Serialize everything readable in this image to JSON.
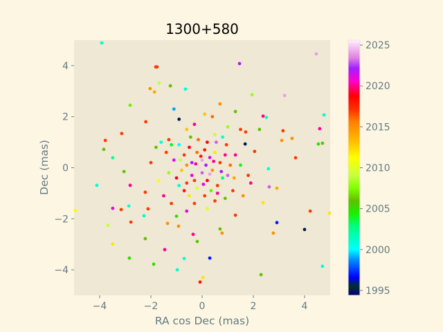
{
  "chart_data": {
    "type": "scatter",
    "title": "1300+580",
    "xlabel": "RA cos Dec (mas)",
    "ylabel": "Dec (mas)",
    "xlim": [
      -5,
      5
    ],
    "ylim": [
      -5,
      5
    ],
    "xticks": [
      -4,
      -2,
      0,
      2,
      4
    ],
    "yticks": [
      -4,
      -2,
      0,
      2,
      4
    ],
    "xtick_labels": [
      "−4",
      "−2",
      "0",
      "2",
      "4"
    ],
    "ytick_labels": [
      "−4",
      "−2",
      "0",
      "2",
      "4"
    ],
    "grid": false,
    "colorbar": {
      "label": "",
      "range": [
        1994.4,
        2025.6
      ],
      "ticks": [
        1995,
        2000,
        2005,
        2010,
        2015,
        2020,
        2025
      ],
      "tick_labels": [
        "1995",
        "2000",
        "2005",
        "2010",
        "2015",
        "2020",
        "2025"
      ]
    },
    "points_format": "[x, y, year]",
    "points": [
      [
        -3.92,
        4.89,
        2001
      ],
      [
        -1.81,
        3.95,
        2017
      ],
      [
        -1.76,
        3.95,
        2017
      ],
      [
        -2.03,
        3.1,
        2015
      ],
      [
        -1.86,
        2.97,
        2014
      ],
      [
        -1.68,
        3.32,
        2009
      ],
      [
        -0.65,
        3.08,
        2001
      ],
      [
        4.46,
        4.46,
        2024
      ],
      [
        1.46,
        4.08,
        2022
      ],
      [
        -2.81,
        2.45,
        2007
      ],
      [
        3.22,
        2.83,
        2024
      ],
      [
        1.95,
        2.86,
        2008
      ],
      [
        2.38,
        2.02,
        2020
      ],
      [
        2.51,
        1.97,
        2001
      ],
      [
        4.76,
        2.07,
        2001
      ],
      [
        -3.78,
        1.07,
        2017
      ],
      [
        -3.14,
        1.34,
        2017
      ],
      [
        -3.84,
        0.72,
        2006
      ],
      [
        3.16,
        1.45,
        2017
      ],
      [
        3.51,
        1.15,
        2015
      ],
      [
        3.11,
        1.07,
        2015
      ],
      [
        3.65,
        0.39,
        2017
      ],
      [
        4.59,
        1.53,
        2020
      ],
      [
        4.7,
        0.96,
        2006
      ],
      [
        4.54,
        0.93,
        2005
      ],
      [
        -3.49,
        0.39,
        2002
      ],
      [
        -3.05,
        -0.15,
        2006
      ],
      [
        -4.95,
        -1.67,
        2011
      ],
      [
        -4.11,
        -0.69,
        2001
      ],
      [
        -2.81,
        -0.69,
        2020
      ],
      [
        -3.49,
        -1.59,
        2021
      ],
      [
        -3.16,
        -1.64,
        2017
      ],
      [
        -3.68,
        -2.26,
        2009
      ],
      [
        -2.78,
        -2.13,
        2017
      ],
      [
        -2.86,
        -1.5,
        2001
      ],
      [
        -3.49,
        -2.99,
        2012
      ],
      [
        -2.84,
        -3.54,
        2005
      ],
      [
        -2.22,
        -2.78,
        2006
      ],
      [
        -2.27,
        -1.88,
        2001
      ],
      [
        -2.11,
        -1.61,
        2017
      ],
      [
        -2.22,
        -0.96,
        2017
      ],
      [
        -1.89,
        -3.78,
        2005
      ],
      [
        -1.46,
        -3.21,
        2020
      ],
      [
        -0.7,
        -3.56,
        2001
      ],
      [
        -0.97,
        -4.0,
        2001
      ],
      [
        0.03,
        -4.3,
        2012
      ],
      [
        -0.08,
        -4.48,
        2018
      ],
      [
        0.3,
        -3.54,
        1997
      ],
      [
        2.3,
        -4.19,
        2006
      ],
      [
        4.7,
        -3.86,
        2001
      ],
      [
        4.0,
        -2.42,
        1995
      ],
      [
        4.22,
        -1.7,
        2017
      ],
      [
        4.97,
        -1.78,
        2012
      ],
      [
        2.92,
        -2.15,
        1997
      ],
      [
        2.78,
        -2.56,
        2015
      ],
      [
        2.38,
        -1.37,
        2012
      ],
      [
        2.92,
        -0.8,
        2014
      ],
      [
        2.62,
        -0.75,
        2023
      ],
      [
        2.59,
        -0.04,
        2001
      ],
      [
        2.05,
        0.64,
        2017
      ],
      [
        2.24,
        1.5,
        2006
      ],
      [
        1.68,
        0.93,
        1995
      ],
      [
        0.78,
        -2.56,
        2015
      ],
      [
        0.7,
        -2.4,
        2006
      ],
      [
        -0.35,
        -2.61,
        2020
      ],
      [
        -0.19,
        -2.89,
        2006
      ],
      [
        1.3,
        -1.86,
        2017
      ],
      [
        -0.92,
        -2.29,
        2015
      ],
      [
        -1.35,
        -2.18,
        2015
      ],
      [
        -1.24,
        3.21,
        2006
      ],
      [
        -2.2,
        1.8,
        2017
      ],
      [
        -1.8,
        0.8,
        2006
      ],
      [
        -1.6,
        1.0,
        2001
      ],
      [
        -1.3,
        1.1,
        2017
      ],
      [
        -1.1,
        2.3,
        1999
      ],
      [
        -0.9,
        1.9,
        1995
      ],
      [
        -0.6,
        1.5,
        2013
      ],
      [
        -0.3,
        1.7,
        2020
      ],
      [
        0.1,
        2.1,
        2013
      ],
      [
        0.4,
        2.0,
        2016
      ],
      [
        0.7,
        2.5,
        2015
      ],
      [
        1.3,
        2.2,
        2006
      ],
      [
        1.0,
        1.6,
        2008
      ],
      [
        1.5,
        1.5,
        2017
      ],
      [
        1.7,
        1.4,
        2017
      ],
      [
        0.8,
        1.2,
        2001
      ],
      [
        0.5,
        1.3,
        2009
      ],
      [
        -2.0,
        0.2,
        2017
      ],
      [
        -1.7,
        -0.5,
        2011
      ],
      [
        -1.5,
        -1.1,
        2020
      ],
      [
        -1.2,
        -1.4,
        2017
      ],
      [
        -1.0,
        -1.9,
        2005
      ],
      [
        -0.6,
        -1.7,
        2021
      ],
      [
        -0.3,
        -1.4,
        2017
      ],
      [
        0.2,
        -1.6,
        2010
      ],
      [
        0.5,
        -1.3,
        2017
      ],
      [
        0.9,
        -1.2,
        2006
      ],
      [
        1.2,
        -0.9,
        2017
      ],
      [
        1.6,
        -1.1,
        2015
      ],
      [
        1.9,
        -0.6,
        2020
      ],
      [
        1.8,
        -0.3,
        2017
      ],
      [
        1.5,
        0.1,
        2004
      ],
      [
        1.3,
        0.5,
        2020
      ],
      [
        -1.4,
        0.6,
        2017
      ],
      [
        -1.1,
        0.3,
        2021
      ],
      [
        -0.9,
        0.9,
        2000
      ],
      [
        -0.7,
        0.5,
        2017
      ],
      [
        -0.5,
        0.8,
        2019
      ],
      [
        -0.4,
        0.2,
        2022
      ],
      [
        -0.2,
        0.6,
        2016
      ],
      [
        0.0,
        0.3,
        2024
      ],
      [
        0.1,
        0.7,
        2018
      ],
      [
        0.3,
        0.4,
        2021
      ],
      [
        0.5,
        0.6,
        2012
      ],
      [
        0.7,
        0.2,
        2017
      ],
      [
        0.9,
        0.5,
        2020
      ],
      [
        1.1,
        0.1,
        2016
      ],
      [
        1.0,
        -0.3,
        2023
      ],
      [
        -1.3,
        -0.2,
        2008
      ],
      [
        -1.0,
        -0.4,
        2019
      ],
      [
        -0.8,
        -0.1,
        2013
      ],
      [
        -0.6,
        -0.6,
        2017
      ],
      [
        -0.4,
        -0.3,
        2021
      ],
      [
        -0.2,
        -0.8,
        2010
      ],
      [
        0.0,
        -0.2,
        2023
      ],
      [
        0.2,
        -0.5,
        2019
      ],
      [
        0.4,
        -0.1,
        2015
      ],
      [
        0.6,
        -0.7,
        2017
      ],
      [
        0.8,
        -0.4,
        2003
      ],
      [
        -0.1,
        0.0,
        2025
      ],
      [
        0.15,
        0.1,
        2022
      ],
      [
        -0.25,
        0.15,
        2020
      ],
      [
        0.3,
        -0.25,
        2024
      ],
      [
        -0.5,
        -1.1,
        2012
      ],
      [
        -0.7,
        -0.9,
        2018
      ],
      [
        0.1,
        -1.1,
        2017
      ],
      [
        0.35,
        -0.9,
        2007
      ],
      [
        0.6,
        -1.0,
        2020
      ],
      [
        -0.9,
        -0.7,
        2001
      ],
      [
        -1.2,
        0.9,
        2004
      ],
      [
        0.95,
        0.9,
        2017
      ],
      [
        0.2,
        1.0,
        2019
      ],
      [
        -0.15,
        1.1,
        2016
      ],
      [
        -0.45,
        1.2,
        2006
      ],
      [
        0.55,
        1.0,
        2023
      ],
      [
        -0.3,
        -0.5,
        2017
      ],
      [
        0.45,
        0.25,
        2020
      ],
      [
        -0.6,
        0.1,
        2015
      ],
      [
        0.75,
        -0.15,
        2022
      ],
      [
        -0.05,
        0.45,
        2018
      ],
      [
        0.05,
        -0.65,
        2021
      ],
      [
        -0.85,
        0.3,
        2009
      ],
      [
        1.25,
        -0.4,
        2014
      ]
    ]
  }
}
